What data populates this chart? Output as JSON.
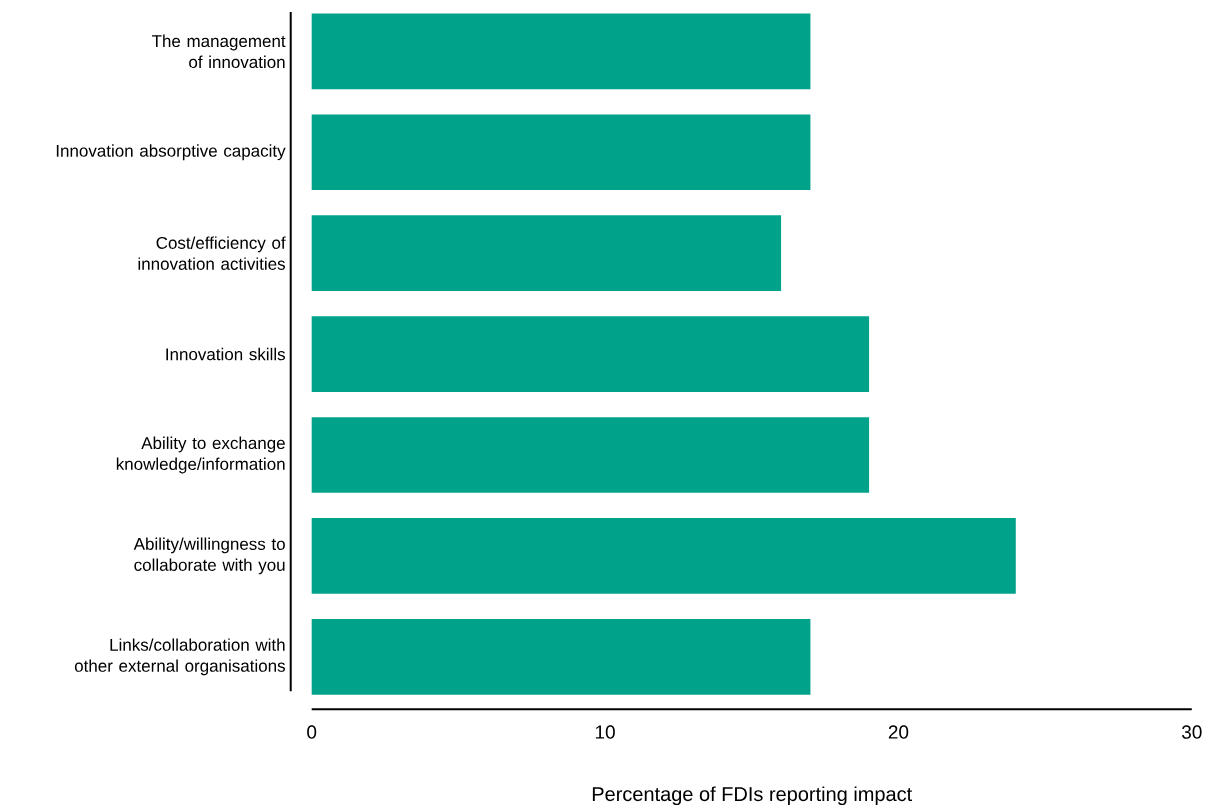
{
  "chart_data": {
    "type": "bar",
    "orientation": "horizontal",
    "categories": [
      "The management of innovation",
      "Innovation absorptive capacity",
      "Cost/efficiency of innovation activities",
      "Innovation skills",
      "Ability to exchange knowledge/information",
      "Ability/willingness to collaborate with you",
      "Links/collaboration with other external organisations"
    ],
    "values": [
      17,
      17,
      16,
      19,
      19,
      24,
      17
    ],
    "color": "#00a389",
    "xlim": [
      0,
      30
    ],
    "xticks": [
      0,
      10,
      20,
      30
    ],
    "xlabel": "Percentage of FDIs reporting impact",
    "grid": false
  }
}
